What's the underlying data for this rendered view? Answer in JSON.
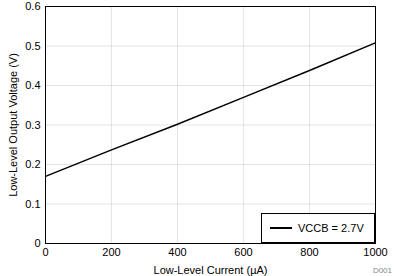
{
  "chart_data": {
    "type": "line",
    "x_label": "Low-Level Current (µA)",
    "y_label": "Low-Level Output Voltage (V)",
    "x": [
      0,
      200,
      400,
      600,
      800,
      1000
    ],
    "series": [
      {
        "name": "VCCB = 2.7V",
        "color": "#000000",
        "values": [
          0.17,
          0.237,
          0.302,
          0.37,
          0.438,
          0.508
        ]
      }
    ],
    "xlim": [
      0,
      1000
    ],
    "xticks": [
      0,
      200,
      400,
      600,
      800,
      1000
    ],
    "ylim": [
      0,
      0.6
    ],
    "yticks": [
      0,
      0.1,
      0.2,
      0.3,
      0.4,
      0.5,
      0.6
    ],
    "grid": true,
    "legend": "lower right",
    "annotation": "D001"
  }
}
